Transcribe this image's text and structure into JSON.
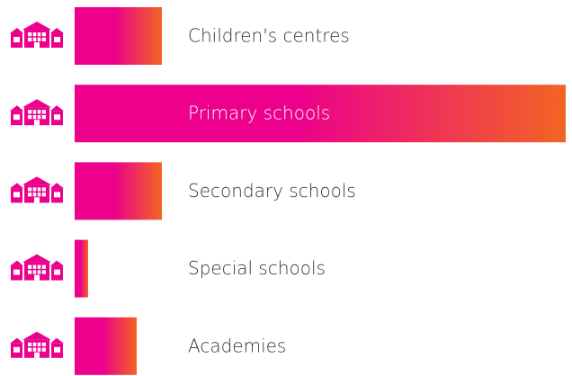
{
  "chart_data": {
    "type": "bar",
    "orientation": "horizontal",
    "categories": [
      "Children's centres",
      "Primary schools",
      "Secondary schools",
      "Special schools",
      "Academies"
    ],
    "values": [
      97,
      546,
      97,
      15,
      69
    ],
    "colors": [
      "#ec008c",
      "#f26522"
    ]
  }
}
